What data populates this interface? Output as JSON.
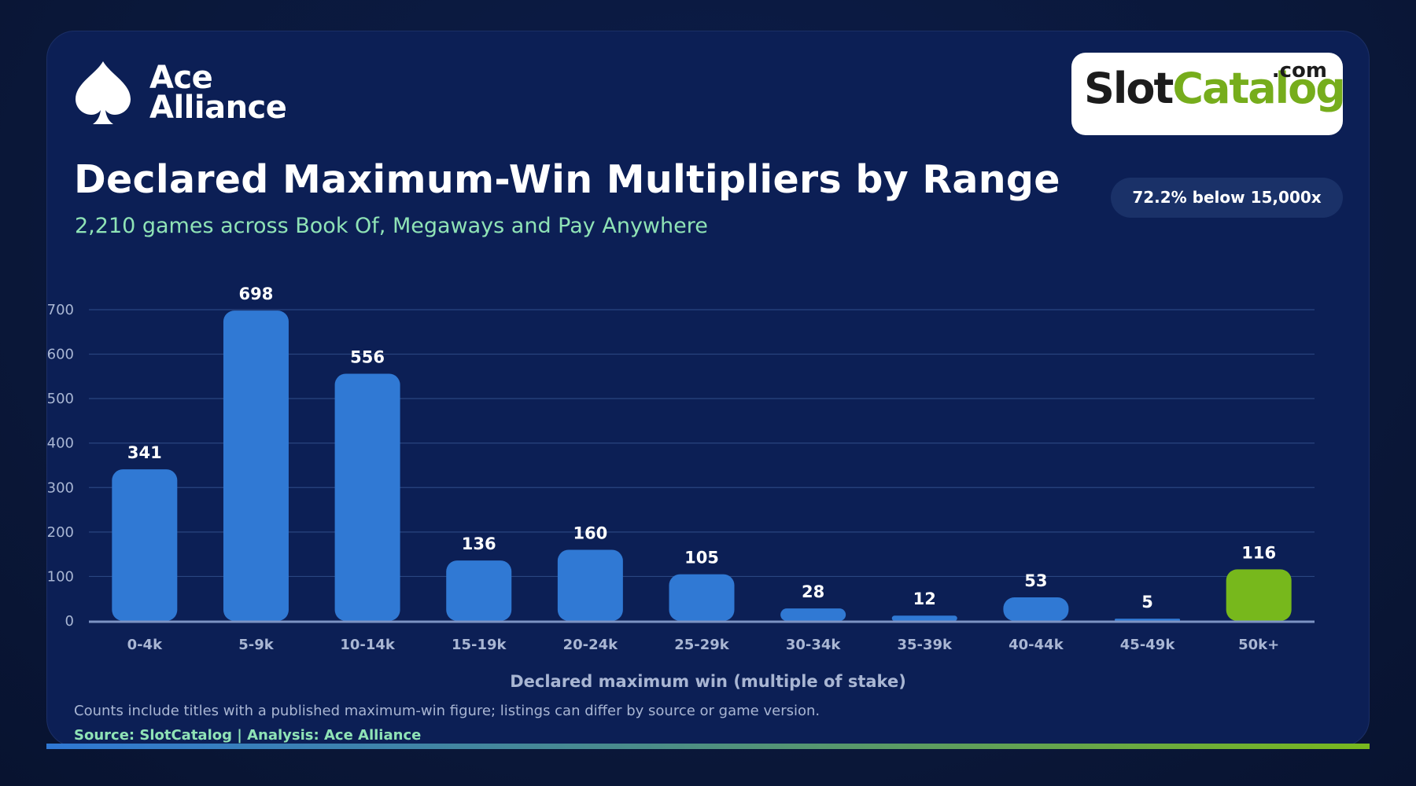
{
  "brand": {
    "ace_line1": "Ace",
    "ace_line2": "Alliance",
    "sc_slot": "Slot",
    "sc_catalog": "Catalog",
    "sc_com": ".com"
  },
  "header": {
    "title": "Declared Maximum-Win Multipliers by Range",
    "subtitle": "2,210 games across Book Of, Megaways and Pay Anywhere",
    "badge": "72.2% below 15,000x"
  },
  "colors": {
    "bar": "#3079d4",
    "highlight": "#77b81c",
    "grid": "#2a4580",
    "tick": "#a9b6d3",
    "label": "#ffffff"
  },
  "chart_data": {
    "type": "bar",
    "categories": [
      "0-4k",
      "5-9k",
      "10-14k",
      "15-19k",
      "20-24k",
      "25-29k",
      "30-34k",
      "35-39k",
      "40-44k",
      "45-49k",
      "50k+"
    ],
    "values": [
      341,
      698,
      556,
      136,
      160,
      105,
      28,
      12,
      53,
      5,
      116
    ],
    "highlight_category": "50k+",
    "title": "Declared Maximum-Win Multipliers by Range",
    "xlabel": "Declared maximum win (multiple of stake)",
    "ylabel": "",
    "ylim": [
      0,
      700
    ],
    "yticks": [
      0,
      100,
      200,
      300,
      400,
      500,
      600,
      700
    ],
    "grid": true,
    "data_labels": true
  },
  "footer": {
    "note": "Counts include titles with a published maximum-win figure; listings can differ by source or game version.",
    "source": "Source: SlotCatalog  |  Analysis: Ace Alliance"
  }
}
